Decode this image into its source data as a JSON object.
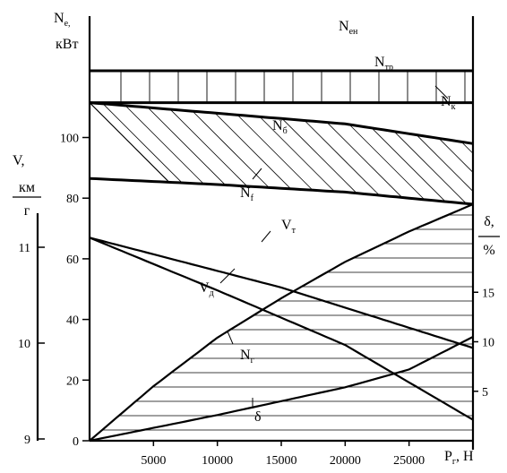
{
  "chart_data": {
    "type": "line",
    "title": "",
    "x_axis": {
      "label_main": "P",
      "label_sub": "г",
      "unit": "Н",
      "range": [
        0,
        30000
      ],
      "ticks": [
        5000,
        10000,
        15000,
        20000,
        25000
      ]
    },
    "y_axis_power": {
      "label_main": "N",
      "label_sub": "e",
      "unit": "кВт",
      "range": [
        0,
        122
      ],
      "ticks": [
        0,
        20,
        40,
        60,
        80,
        100
      ]
    },
    "y_axis_speed": {
      "label": "V,",
      "unit_numerator": "км",
      "unit_denominator": "г",
      "range": [
        9,
        11.5
      ],
      "ticks": [
        9,
        10,
        11
      ]
    },
    "y_axis_slip": {
      "label": "δ,",
      "unit": "%",
      "range": [
        0,
        20
      ],
      "ticks": [
        5,
        10,
        15
      ]
    },
    "series": [
      {
        "name": "Nен",
        "label_main": "N",
        "label_sub": "ен",
        "axis": "power",
        "x": [
          0,
          30000
        ],
        "y": [
          122,
          122
        ]
      },
      {
        "name": "Nтр",
        "label_main": "N",
        "label_sub": "тр",
        "axis": "power",
        "x": [
          0,
          30000
        ],
        "y": [
          111.5,
          111.5
        ]
      },
      {
        "name": "Nк",
        "label_main": "N",
        "label_sub": "к",
        "axis": "power",
        "x": [
          0,
          10000,
          20000,
          30000
        ],
        "y": [
          111.5,
          108,
          104.5,
          98
        ]
      },
      {
        "name": "Nf",
        "label_main": "N",
        "label_sub": "f",
        "axis": "power",
        "x": [
          0,
          10000,
          20000,
          30000
        ],
        "y": [
          86.5,
          84.5,
          82,
          78
        ]
      },
      {
        "name": "Vт",
        "label_main": "V",
        "label_sub": "т",
        "axis": "speed",
        "x": [
          0,
          15000,
          30000
        ],
        "y": [
          11.1,
          10.58,
          9.95
        ]
      },
      {
        "name": "Vд",
        "label_main": "V",
        "label_sub": "д",
        "axis": "speed",
        "x": [
          0,
          10000,
          20000,
          30000
        ],
        "y": [
          11.1,
          10.55,
          9.98,
          9.2
        ]
      },
      {
        "name": "Nг",
        "label_main": "N",
        "label_sub": "г",
        "axis": "power",
        "x": [
          0,
          5000,
          10000,
          15000,
          20000,
          25000,
          30000
        ],
        "y": [
          0,
          18,
          34,
          47,
          59,
          69,
          78
        ]
      },
      {
        "name": "δ",
        "label_main": "δ",
        "label_sub": "",
        "axis": "slip",
        "x": [
          0,
          10000,
          20000,
          25000,
          30000
        ],
        "y": [
          0,
          2.6,
          5.4,
          7.2,
          10.5
        ]
      }
    ],
    "regions": [
      {
        "name": "Nтр",
        "between": [
          "Nен",
          "Nтр"
        ],
        "hatch": "vertical"
      },
      {
        "name": "Nб",
        "label_main": "N",
        "label_sub": "б",
        "between": [
          "Nк",
          "Nf"
        ],
        "hatch": "diagonal"
      },
      {
        "name": "Nг",
        "between": [
          "Nг",
          "x-axis"
        ],
        "hatch": "horizontal"
      }
    ],
    "grid": false,
    "legend": "none"
  }
}
